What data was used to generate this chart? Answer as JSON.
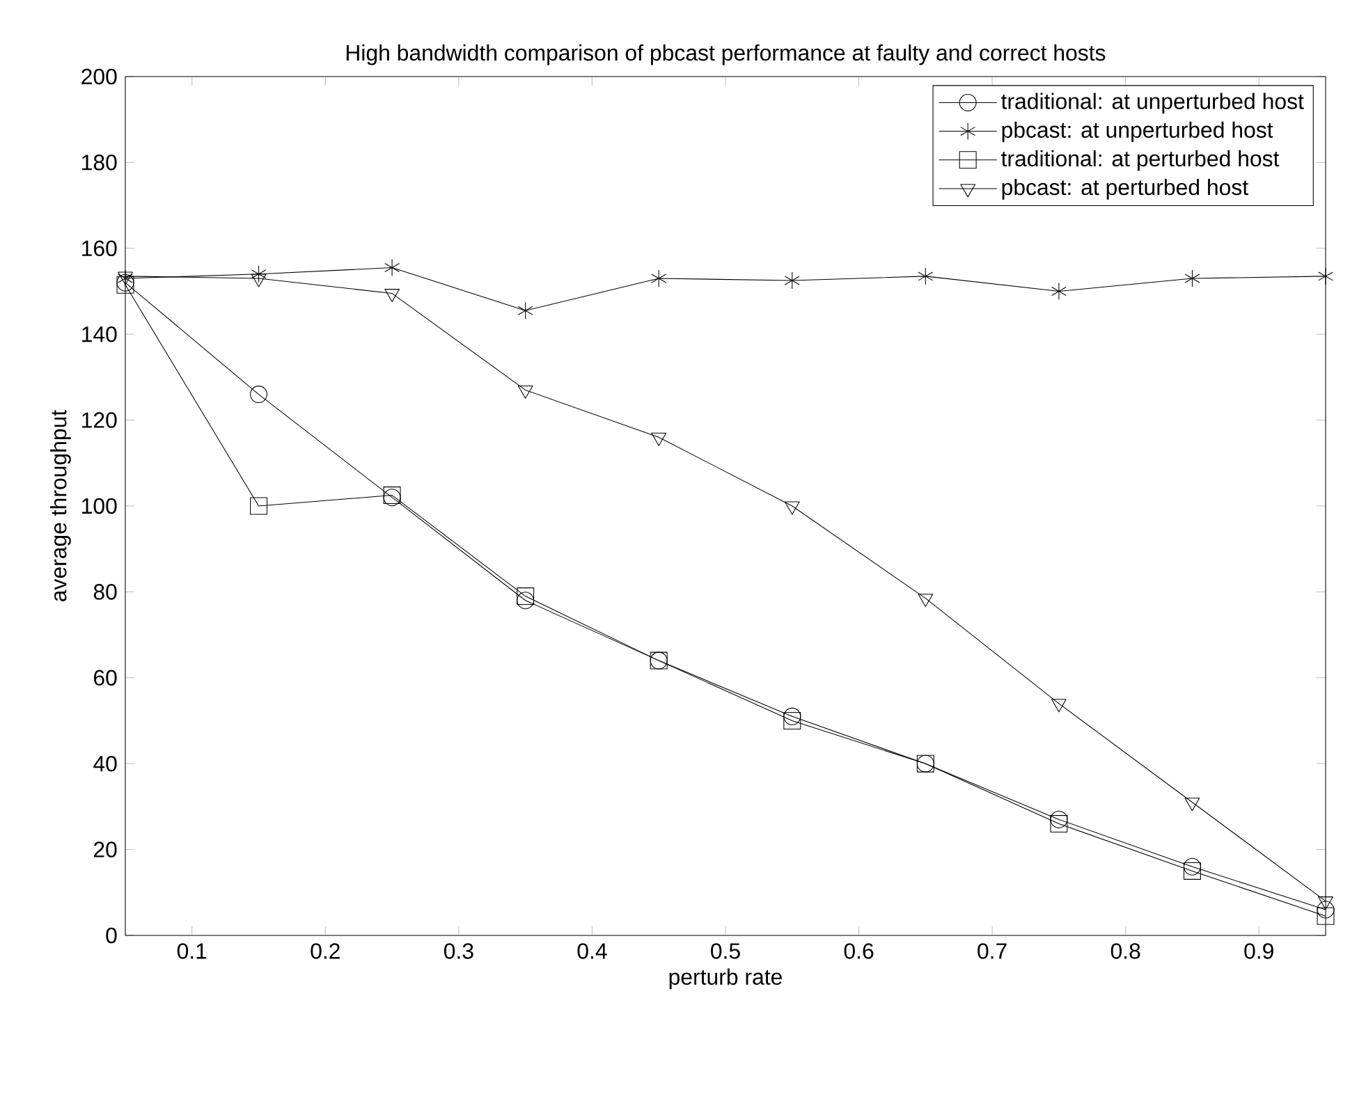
{
  "chart_data": {
    "type": "line",
    "title": "High bandwidth comparison of pbcast performance at faulty and correct hosts",
    "xlabel": "perturb rate",
    "ylabel": "average throughput",
    "x": [
      0.05,
      0.15,
      0.25,
      0.35,
      0.45,
      0.55,
      0.65,
      0.75,
      0.85,
      0.95
    ],
    "series": [
      {
        "name": "traditional: at unperturbed host",
        "color": "#000000",
        "marker": "circle",
        "values": [
          152,
          126,
          102,
          78,
          64,
          51,
          40,
          27,
          16,
          6
        ]
      },
      {
        "name": "pbcast: at unperturbed host",
        "color": "#000000",
        "marker": "cross",
        "values": [
          153,
          154,
          155.5,
          145.5,
          153,
          152.5,
          153.5,
          150,
          153,
          153.5
        ]
      },
      {
        "name": "traditional: at perturbed host",
        "color": "#000000",
        "marker": "square",
        "values": [
          151.5,
          100,
          102.5,
          79,
          64,
          50,
          40,
          26,
          15,
          4.5
        ]
      },
      {
        "name": "pbcast: at perturbed host",
        "color": "#000000",
        "marker": "triangle",
        "values": [
          153.5,
          153,
          149.5,
          127,
          116,
          100,
          78.5,
          54,
          31,
          8
        ]
      }
    ],
    "xlim": [
      0.05,
      0.95
    ],
    "ylim": [
      0,
      200
    ],
    "xticks": [
      0.1,
      0.2,
      0.3,
      0.4,
      0.5,
      0.6,
      0.7,
      0.8,
      0.9
    ],
    "yticks": [
      0,
      20,
      40,
      60,
      80,
      100,
      120,
      140,
      160,
      180,
      200
    ],
    "grid": false,
    "legend": "top right",
    "line_style": "solid"
  }
}
